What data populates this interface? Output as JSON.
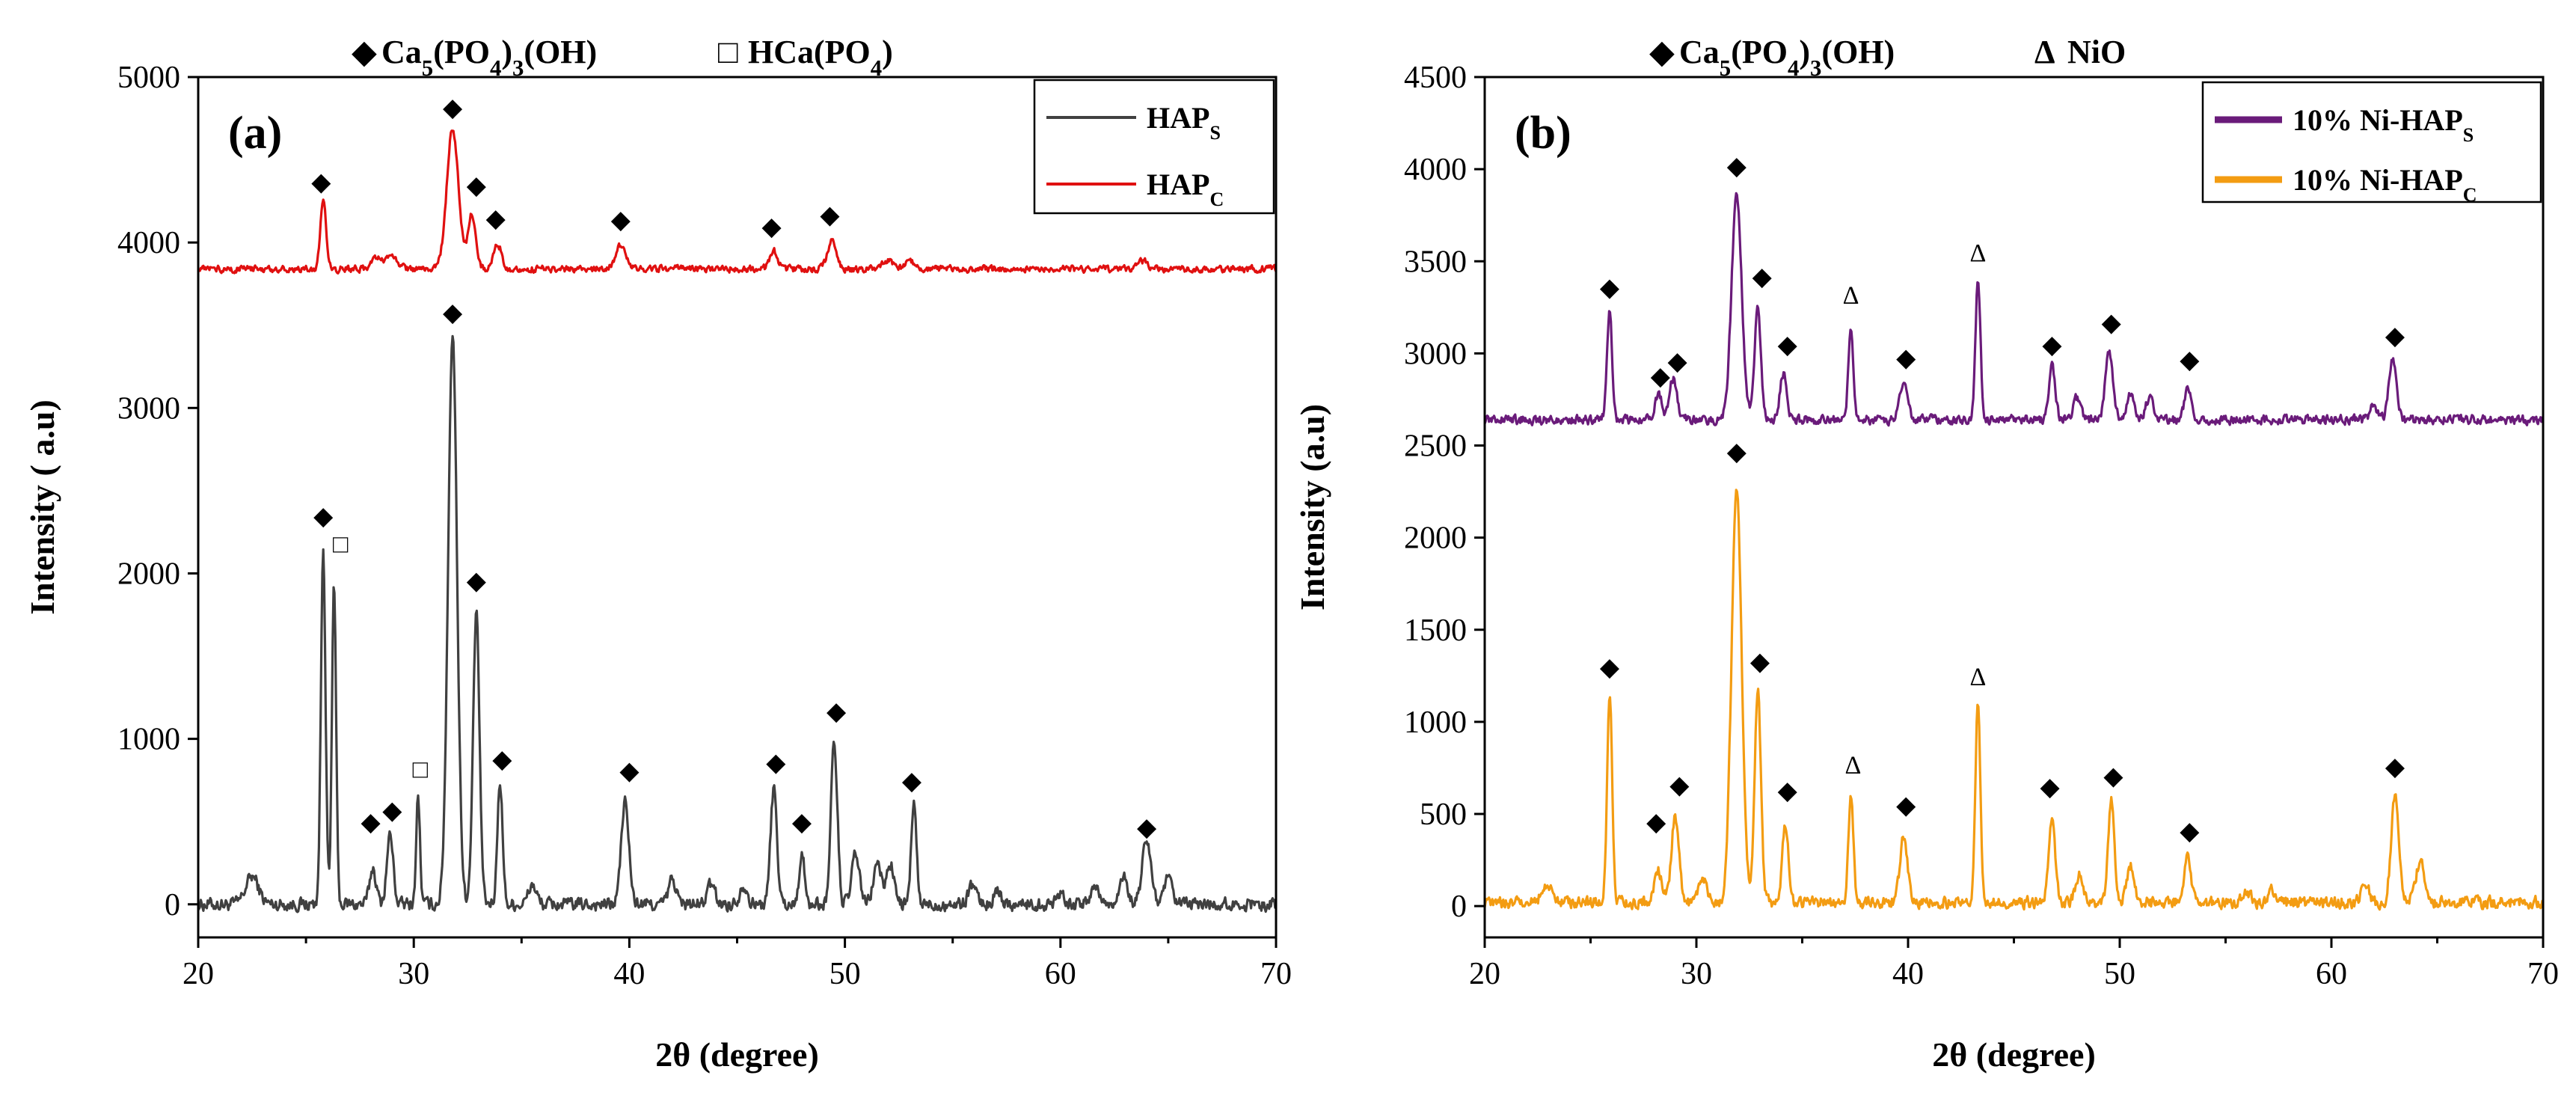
{
  "figure": "XRD patterns",
  "chart_data": [
    {
      "type": "line",
      "panel_label": "(a)",
      "header": {
        "items": [
          {
            "symbol": "◆",
            "text": "Ca5(PO4)3(OH)",
            "name": "hydroxyapatite"
          },
          {
            "symbol": "□",
            "text": "HCa(PO4)",
            "name": "monetite"
          }
        ]
      },
      "xlabel": "2θ (degree)",
      "ylabel": "Intensity ( a.u)",
      "xlim": [
        20,
        70
      ],
      "ylim": [
        -200,
        5000
      ],
      "xticks": [
        "20",
        "30",
        "40",
        "50",
        "60",
        "70"
      ],
      "yticks": [
        "0",
        "1000",
        "2000",
        "3000",
        "4000",
        "5000"
      ],
      "series": [
        {
          "name": "HAP_S",
          "legend": "HAPS",
          "legend_main": "HAP",
          "legend_sub": "S",
          "color": "#404040",
          "baseline": 0,
          "noise": 35,
          "peaks": [
            [
              22.5,
              170,
              0.5
            ],
            [
              25.8,
              2150,
              0.18
            ],
            [
              26.3,
              1950,
              0.16
            ],
            [
              28.1,
              220,
              0.25
            ],
            [
              28.9,
              420,
              0.25
            ],
            [
              30.2,
              650,
              0.15
            ],
            [
              31.8,
              3450,
              0.35
            ],
            [
              32.9,
              1750,
              0.25
            ],
            [
              34.0,
              750,
              0.2
            ],
            [
              35.5,
              120,
              0.3
            ],
            [
              39.8,
              620,
              0.3
            ],
            [
              42.0,
              150,
              0.3
            ],
            [
              43.8,
              120,
              0.3
            ],
            [
              45.3,
              120,
              0.3
            ],
            [
              46.7,
              700,
              0.25
            ],
            [
              48.0,
              320,
              0.2
            ],
            [
              49.5,
              980,
              0.25
            ],
            [
              50.5,
              300,
              0.3
            ],
            [
              51.5,
              250,
              0.3
            ],
            [
              52.1,
              250,
              0.3
            ],
            [
              53.2,
              620,
              0.2
            ],
            [
              55.9,
              120,
              0.3
            ],
            [
              57.1,
              80,
              0.3
            ],
            [
              60.0,
              80,
              0.3
            ],
            [
              61.6,
              120,
              0.3
            ],
            [
              62.9,
              180,
              0.3
            ],
            [
              64.0,
              380,
              0.35
            ],
            [
              65.0,
              150,
              0.3
            ]
          ],
          "markers": [
            {
              "x": 25.8,
              "y": 2350,
              "symbol": "◆"
            },
            {
              "x": 26.6,
              "y": 2180,
              "symbol": "□"
            },
            {
              "x": 28.0,
              "y": 500,
              "symbol": "◆"
            },
            {
              "x": 29.0,
              "y": 570,
              "symbol": "◆"
            },
            {
              "x": 30.3,
              "y": 820,
              "symbol": "□"
            },
            {
              "x": 31.8,
              "y": 3580,
              "symbol": "◆"
            },
            {
              "x": 32.9,
              "y": 1960,
              "symbol": "◆"
            },
            {
              "x": 34.1,
              "y": 880,
              "symbol": "◆"
            },
            {
              "x": 40.0,
              "y": 810,
              "symbol": "◆"
            },
            {
              "x": 46.8,
              "y": 860,
              "symbol": "◆"
            },
            {
              "x": 48.0,
              "y": 500,
              "symbol": "◆"
            },
            {
              "x": 49.6,
              "y": 1170,
              "symbol": "◆"
            },
            {
              "x": 53.1,
              "y": 750,
              "symbol": "◆"
            },
            {
              "x": 64.0,
              "y": 470,
              "symbol": "◆"
            }
          ]
        },
        {
          "name": "HAP_C",
          "legend": "HAPC",
          "legend_main": "HAP",
          "legend_sub": "C",
          "color": "#e01010",
          "baseline": 3840,
          "noise": 18,
          "peaks": [
            [
              25.8,
              430,
              0.22
            ],
            [
              28.3,
              60,
              0.4
            ],
            [
              29.0,
              80,
              0.4
            ],
            [
              31.8,
              850,
              0.45
            ],
            [
              32.7,
              330,
              0.3
            ],
            [
              33.9,
              150,
              0.3
            ],
            [
              39.6,
              140,
              0.4
            ],
            [
              46.7,
              110,
              0.3
            ],
            [
              49.4,
              170,
              0.35
            ],
            [
              52.0,
              50,
              0.4
            ],
            [
              53.0,
              60,
              0.3
            ],
            [
              63.8,
              50,
              0.4
            ]
          ],
          "markers": [
            {
              "x": 25.7,
              "y": 4370,
              "symbol": "◆"
            },
            {
              "x": 31.8,
              "y": 4820,
              "symbol": "◆"
            },
            {
              "x": 32.9,
              "y": 4350,
              "symbol": "◆"
            },
            {
              "x": 33.8,
              "y": 4150,
              "symbol": "◆"
            },
            {
              "x": 39.6,
              "y": 4140,
              "symbol": "◆"
            },
            {
              "x": 46.6,
              "y": 4100,
              "symbol": "◆"
            },
            {
              "x": 49.3,
              "y": 4170,
              "symbol": "◆"
            }
          ]
        }
      ]
    },
    {
      "type": "line",
      "panel_label": "(b)",
      "header": {
        "items": [
          {
            "symbol": "◆",
            "text": "Ca5(PO4)3(OH)",
            "name": "hydroxyapatite"
          },
          {
            "symbol": "Δ",
            "text": "NiO",
            "name": "nio"
          }
        ]
      },
      "xlabel": "2θ (degree)",
      "ylabel": "Intensity (a.u)",
      "xlim": [
        20,
        70
      ],
      "ylim": [
        -170,
        4500
      ],
      "xticks": [
        "20",
        "30",
        "40",
        "50",
        "60",
        "70"
      ],
      "yticks": [
        "0",
        "500",
        "1000",
        "1500",
        "2000",
        "2500",
        "3000",
        "3500",
        "4000",
        "4500"
      ],
      "series": [
        {
          "name": "10% Ni-HAP_S",
          "legend": "10% Ni-HAPS",
          "legend_main": "10% Ni-HAP",
          "legend_sub": "S",
          "color": "#6a1b7a",
          "baseline": 2640,
          "noise": 22,
          "peaks": [
            [
              25.9,
              600,
              0.2
            ],
            [
              28.2,
              130,
              0.3
            ],
            [
              28.9,
              220,
              0.3
            ],
            [
              31.9,
              1220,
              0.4
            ],
            [
              32.9,
              600,
              0.25
            ],
            [
              34.1,
              250,
              0.25
            ],
            [
              37.3,
              480,
              0.2
            ],
            [
              39.8,
              200,
              0.3
            ],
            [
              43.3,
              770,
              0.2
            ],
            [
              46.8,
              300,
              0.25
            ],
            [
              48.0,
              120,
              0.3
            ],
            [
              49.5,
              380,
              0.3
            ],
            [
              50.5,
              150,
              0.3
            ],
            [
              51.4,
              120,
              0.3
            ],
            [
              53.2,
              180,
              0.25
            ],
            [
              62.0,
              80,
              0.3
            ],
            [
              62.9,
              330,
              0.3
            ]
          ],
          "markers": [
            {
              "x": 25.9,
              "y": 3360,
              "symbol": "◆"
            },
            {
              "x": 28.3,
              "y": 2880,
              "symbol": "◆"
            },
            {
              "x": 29.1,
              "y": 2960,
              "symbol": "◆"
            },
            {
              "x": 31.9,
              "y": 4020,
              "symbol": "◆"
            },
            {
              "x": 33.1,
              "y": 3420,
              "symbol": "◆"
            },
            {
              "x": 34.3,
              "y": 3050,
              "symbol": "◆"
            },
            {
              "x": 37.3,
              "y": 3320,
              "symbol": "Δ"
            },
            {
              "x": 39.9,
              "y": 2980,
              "symbol": "◆"
            },
            {
              "x": 43.3,
              "y": 3550,
              "symbol": "Δ"
            },
            {
              "x": 46.8,
              "y": 3050,
              "symbol": "◆"
            },
            {
              "x": 49.6,
              "y": 3170,
              "symbol": "◆"
            },
            {
              "x": 53.3,
              "y": 2970,
              "symbol": "◆"
            },
            {
              "x": 63.0,
              "y": 3100,
              "symbol": "◆"
            }
          ]
        },
        {
          "name": "10% Ni-HAP_C",
          "legend": "10% Ni-HAPC",
          "legend_main": "10% Ni-HAP",
          "legend_sub": "C",
          "color": "#f39c12",
          "baseline": 20,
          "noise": 28,
          "peaks": [
            [
              23.0,
              80,
              0.5
            ],
            [
              25.9,
              1130,
              0.2
            ],
            [
              28.2,
              180,
              0.3
            ],
            [
              29.0,
              470,
              0.3
            ],
            [
              30.3,
              150,
              0.3
            ],
            [
              31.9,
              2250,
              0.4
            ],
            [
              32.9,
              1150,
              0.25
            ],
            [
              34.2,
              420,
              0.25
            ],
            [
              37.3,
              580,
              0.2
            ],
            [
              39.8,
              360,
              0.3
            ],
            [
              43.3,
              1080,
              0.2
            ],
            [
              46.8,
              470,
              0.25
            ],
            [
              48.1,
              150,
              0.3
            ],
            [
              49.6,
              560,
              0.25
            ],
            [
              50.5,
              200,
              0.3
            ],
            [
              53.2,
              280,
              0.25
            ],
            [
              56.0,
              60,
              0.3
            ],
            [
              57.2,
              60,
              0.3
            ],
            [
              61.6,
              120,
              0.3
            ],
            [
              63.0,
              570,
              0.3
            ],
            [
              64.2,
              220,
              0.35
            ]
          ],
          "markers": [
            {
              "x": 25.9,
              "y": 1300,
              "symbol": "◆"
            },
            {
              "x": 28.1,
              "y": 460,
              "symbol": "◆"
            },
            {
              "x": 29.2,
              "y": 660,
              "symbol": "◆"
            },
            {
              "x": 31.9,
              "y": 2470,
              "symbol": "◆"
            },
            {
              "x": 33.0,
              "y": 1330,
              "symbol": "◆"
            },
            {
              "x": 34.3,
              "y": 630,
              "symbol": "◆"
            },
            {
              "x": 37.4,
              "y": 770,
              "symbol": "Δ"
            },
            {
              "x": 39.9,
              "y": 550,
              "symbol": "◆"
            },
            {
              "x": 43.3,
              "y": 1250,
              "symbol": "Δ"
            },
            {
              "x": 46.7,
              "y": 650,
              "symbol": "◆"
            },
            {
              "x": 49.7,
              "y": 710,
              "symbol": "◆"
            },
            {
              "x": 53.3,
              "y": 410,
              "symbol": "◆"
            },
            {
              "x": 63.0,
              "y": 760,
              "symbol": "◆"
            }
          ]
        }
      ]
    }
  ]
}
